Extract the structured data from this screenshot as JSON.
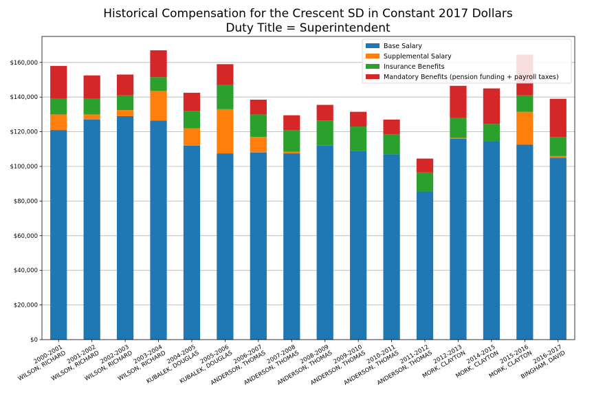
{
  "chart_data": {
    "type": "bar",
    "stacked": true,
    "title": "Historical Compensation for the Crescent SD in Constant 2017 Dollars",
    "subtitle": "Duty Title = Superintendent",
    "xlabel": "",
    "ylabel": "",
    "ylim": [
      0,
      175000
    ],
    "yticks": [
      0,
      20000,
      40000,
      60000,
      80000,
      100000,
      120000,
      140000,
      160000
    ],
    "ytick_labels": [
      "$0",
      "$20,000",
      "$40,000",
      "$60,000",
      "$80,000",
      "$100,000",
      "$120,000",
      "$140,000",
      "$160,000"
    ],
    "grid": "horizontal",
    "legend_position": "top-right",
    "categories": [
      [
        "2000-2001",
        "WILSON, RICHARD"
      ],
      [
        "2001-2002",
        "WILSON, RICHARD"
      ],
      [
        "2002-2003",
        "WILSON, RICHARD"
      ],
      [
        "2003-2004",
        "WILSON, RICHARD"
      ],
      [
        "2004-2005",
        "KUBALEK, DOUGLAS"
      ],
      [
        "2005-2006",
        "KUBALEK, DOUGLAS"
      ],
      [
        "2006-2007",
        "ANDERSON, THOMAS"
      ],
      [
        "2007-2008",
        "ANDERSON, THOMAS"
      ],
      [
        "2008-2009",
        "ANDERSON, THOMAS"
      ],
      [
        "2009-2010",
        "ANDERSON, THOMAS"
      ],
      [
        "2010-2011",
        "ANDERSON, THOMAS"
      ],
      [
        "2011-2012",
        "ANDERSON, THOMAS"
      ],
      [
        "2012-2013",
        "MORK, CLAYTON"
      ],
      [
        "2014-2015",
        "MORK, CLAYTON"
      ],
      [
        "2015-2016",
        "MORK, CLAYTON"
      ],
      [
        "2016-2017",
        "BINGHAM, DAVID"
      ]
    ],
    "series": [
      {
        "name": "Base Salary",
        "color": "#1f77b4",
        "values": [
          121000,
          127000,
          129000,
          126500,
          112000,
          107500,
          108000,
          107500,
          112000,
          109000,
          107000,
          85500,
          116000,
          114500,
          112500,
          105000
        ]
      },
      {
        "name": "Supplemental Salary",
        "color": "#ff7f0e",
        "values": [
          9000,
          3000,
          3500,
          17000,
          10000,
          25500,
          9000,
          1000,
          0,
          0,
          0,
          0,
          500,
          0,
          19000,
          1000
        ]
      },
      {
        "name": "Insurance Benefits",
        "color": "#2ca02c",
        "values": [
          9000,
          9000,
          8500,
          8000,
          10000,
          14000,
          13000,
          12500,
          14500,
          14000,
          11500,
          11000,
          11500,
          10000,
          9500,
          11000
        ]
      },
      {
        "name": "Mandatory Benefits (pension funding + payroll taxes)",
        "color": "#d62728",
        "values": [
          19000,
          13500,
          12000,
          15500,
          10500,
          12000,
          8500,
          8500,
          9000,
          8500,
          8500,
          8000,
          18500,
          20500,
          23500,
          22000
        ]
      }
    ]
  }
}
